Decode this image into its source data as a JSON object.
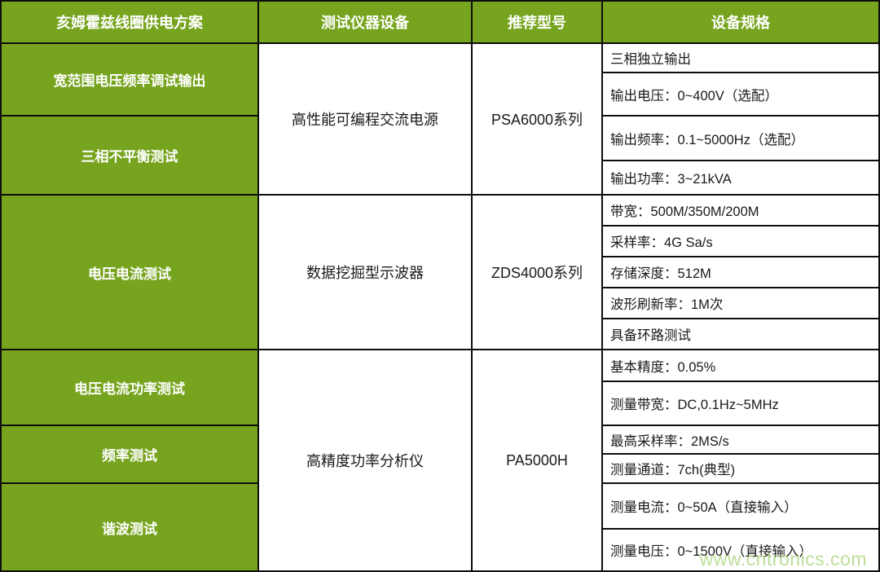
{
  "colors": {
    "header_green": "#77A41F",
    "border_black": "#0d0d0d",
    "watermark_green": "#b5db8d"
  },
  "watermark": "www.cntronics.com",
  "table": {
    "headers": {
      "solution": "亥姆霍兹线圈供电方案",
      "equipment": "测试仪器设备",
      "model": "推荐型号",
      "specs": "设备规格"
    },
    "sections": [
      {
        "device": "高性能可编程交流电源",
        "model": "PSA6000系列",
        "categories": [
          "宽范围电压频率调试输出",
          "三相不平衡测试"
        ],
        "specs": [
          "三相独立输出",
          "输出电压：0~400V（选配）",
          "输出频率：0.1~5000Hz（选配）",
          "输出功率：3~21kVA"
        ]
      },
      {
        "device": "数据挖掘型示波器",
        "model": "ZDS4000系列",
        "categories": [
          "电压电流测试"
        ],
        "specs": [
          "带宽：500M/350M/200M",
          "采样率：4G Sa/s",
          "存储深度：512M",
          "波形刷新率：1M次",
          "具备环路测试"
        ]
      },
      {
        "device": "高精度功率分析仪",
        "model": "PA5000H",
        "categories": [
          "电压电流功率测试",
          "频率测试",
          "谐波测试"
        ],
        "specs": [
          "基本精度：0.05%",
          "测量带宽：DC,0.1Hz~5MHz",
          "最高采样率：2MS/s",
          "测量通道：7ch(典型)",
          "测量电流：0~50A（直接输入）",
          "测量电压：0~1500V（直接输入）"
        ]
      }
    ]
  }
}
